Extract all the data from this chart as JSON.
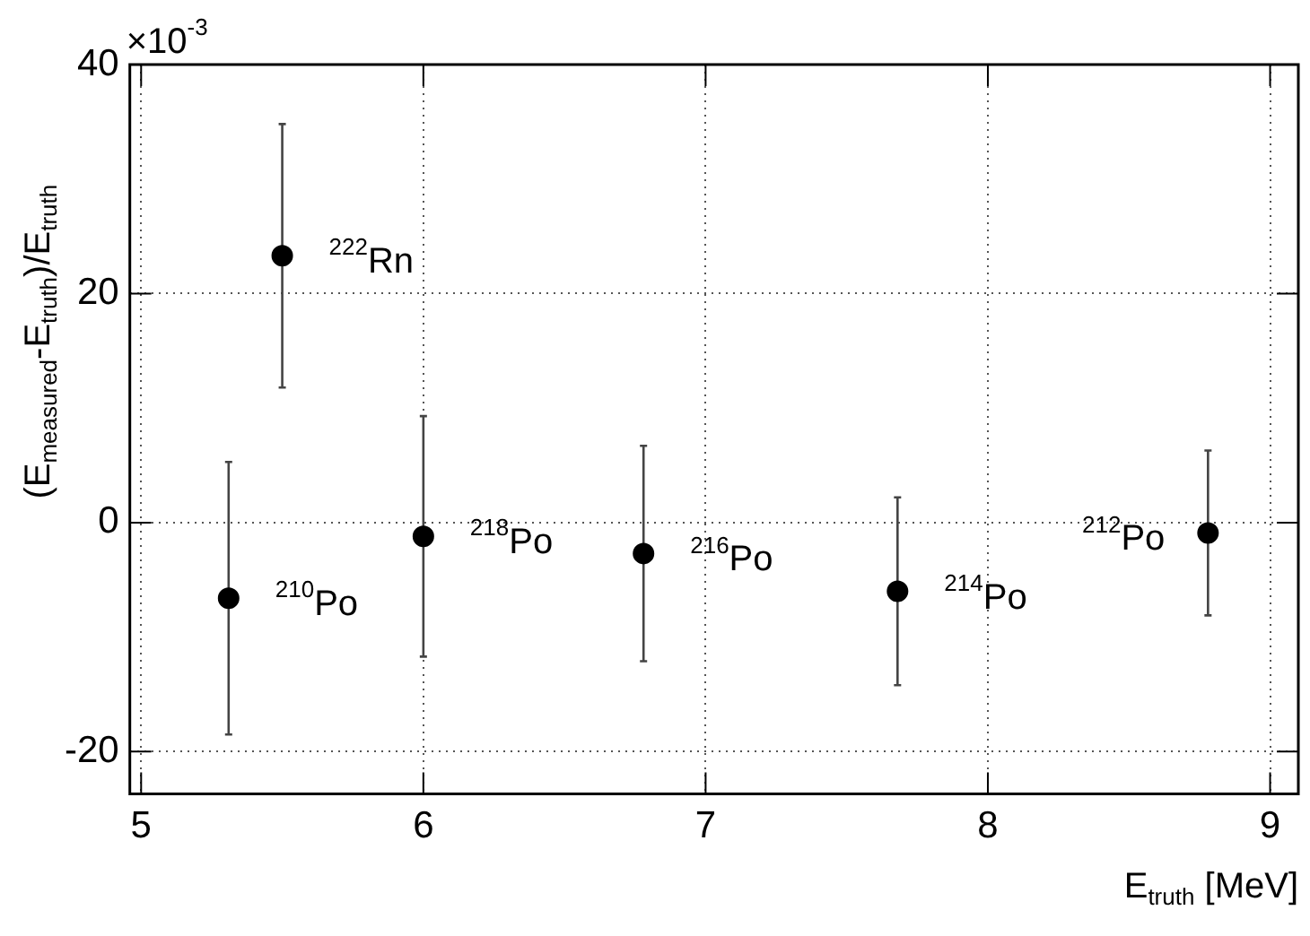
{
  "chart_data": {
    "type": "scatter",
    "xlabel": "E$_{truth}$ [MeV]",
    "ylabel": "(E$_{measured}$-E$_{truth}$)/E$_{truth}$",
    "x": [
      5.31,
      5.5,
      6.0,
      6.78,
      7.68,
      8.78
    ],
    "values": [
      -6.6,
      23.3,
      -1.2,
      -2.7,
      -6.0,
      -0.9
    ],
    "errors": [
      11.9,
      11.5,
      10.5,
      9.4,
      8.2,
      7.2
    ],
    "color": "#000000",
    "marker": "circle",
    "grid": true,
    "legend": false,
    "xlim": [
      4.96,
      9.1
    ],
    "xticks": [
      5,
      6,
      7,
      8,
      9
    ],
    "ylim": [
      -23.7,
      40
    ],
    "yticks": [
      -20,
      0,
      20,
      40
    ],
    "annotations": [
      "×10$^{-3}$",
      {
        "text": "$^{210}$Po",
        "x": 5.31,
        "y": -6.6
      },
      {
        "text": "$^{222}$Rn",
        "x": 5.5,
        "y": 23.3
      },
      {
        "text": "$^{218}$Po",
        "x": 6.0,
        "y": -1.2
      },
      {
        "text": "$^{216}$Po",
        "x": 6.78,
        "y": -2.7
      },
      {
        "text": "$^{214}$Po",
        "x": 7.68,
        "y": -6.0
      },
      {
        "text": "$^{212}$Po",
        "x": 8.78,
        "y": -0.9
      }
    ]
  }
}
